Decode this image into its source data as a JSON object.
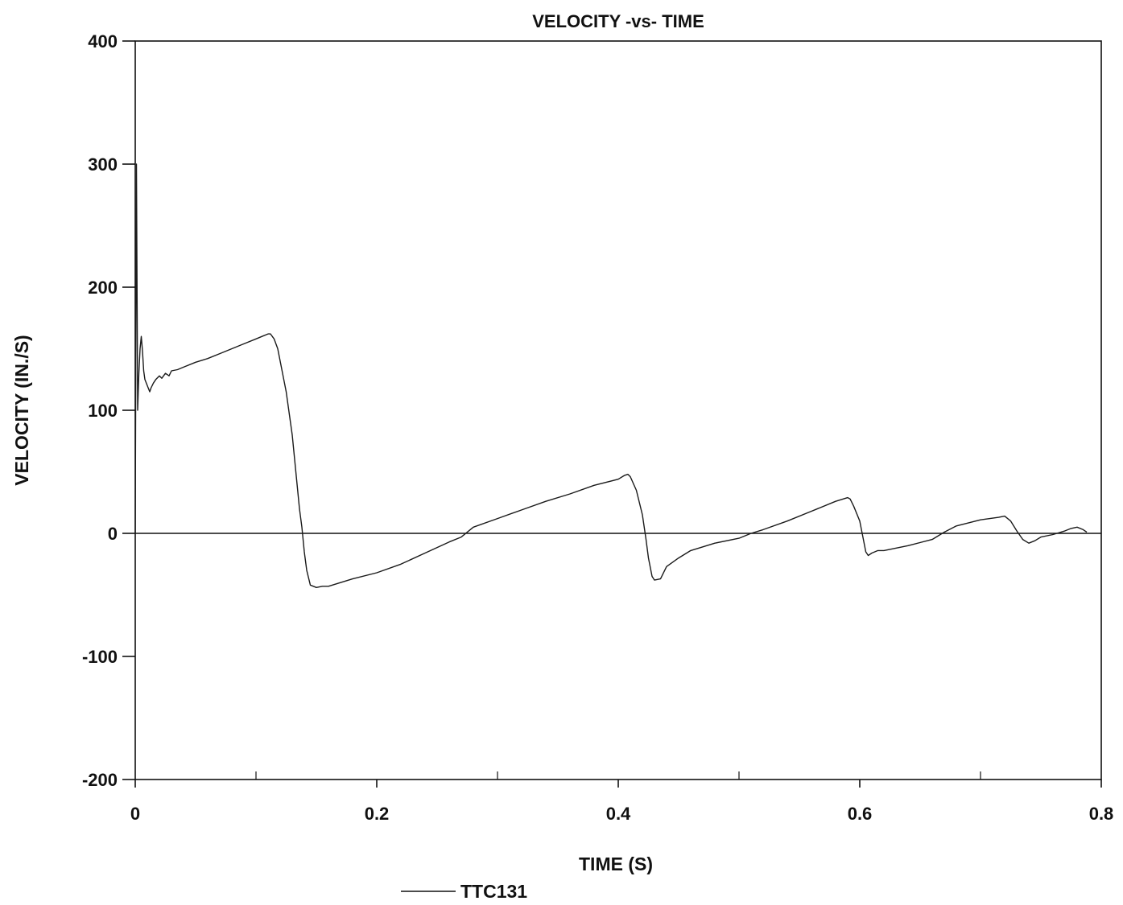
{
  "chart_data": {
    "type": "line",
    "title": "VELOCITY -vs- TIME",
    "xlabel": "TIME (S)",
    "ylabel": "VELOCITY (IN./S)",
    "xlim": [
      0,
      0.8
    ],
    "ylim": [
      -200,
      400
    ],
    "x_ticks": [
      0,
      0.2,
      0.4,
      0.6,
      0.8
    ],
    "x_tick_labels": [
      "0",
      "0.2",
      "0.4",
      "0.6",
      "0.8"
    ],
    "x_minor_ticks": [
      0.1,
      0.3,
      0.5,
      0.7
    ],
    "y_ticks": [
      -200,
      -100,
      0,
      100,
      200,
      300,
      400
    ],
    "y_tick_labels": [
      "-200",
      "-100",
      "0",
      "100",
      "200",
      "300",
      "400"
    ],
    "zero_line": true,
    "grid": false,
    "legend_position": "bottom-center",
    "colors": {
      "series": "#1a1a1a",
      "axes": "#111111"
    },
    "series": [
      {
        "name": "TTC131",
        "x": [
          0,
          0.001,
          0.002,
          0.003,
          0.004,
          0.005,
          0.006,
          0.007,
          0.008,
          0.01,
          0.012,
          0.013,
          0.015,
          0.017,
          0.02,
          0.022,
          0.025,
          0.028,
          0.03,
          0.035,
          0.04,
          0.05,
          0.06,
          0.07,
          0.08,
          0.09,
          0.1,
          0.105,
          0.11,
          0.112,
          0.115,
          0.118,
          0.12,
          0.125,
          0.13,
          0.133,
          0.136,
          0.138,
          0.14,
          0.142,
          0.145,
          0.15,
          0.155,
          0.16,
          0.17,
          0.18,
          0.2,
          0.22,
          0.24,
          0.26,
          0.27,
          0.28,
          0.3,
          0.32,
          0.34,
          0.36,
          0.38,
          0.4,
          0.405,
          0.408,
          0.41,
          0.415,
          0.42,
          0.423,
          0.425,
          0.428,
          0.43,
          0.435,
          0.44,
          0.45,
          0.46,
          0.48,
          0.5,
          0.51,
          0.52,
          0.54,
          0.56,
          0.58,
          0.59,
          0.592,
          0.595,
          0.6,
          0.603,
          0.605,
          0.607,
          0.61,
          0.615,
          0.62,
          0.64,
          0.66,
          0.67,
          0.68,
          0.7,
          0.715,
          0.72,
          0.725,
          0.73,
          0.735,
          0.74,
          0.745,
          0.75,
          0.76,
          0.77,
          0.775,
          0.78,
          0.785,
          0.788
        ],
        "values": [
          0,
          300,
          100,
          130,
          150,
          160,
          148,
          132,
          125,
          120,
          115,
          118,
          122,
          125,
          128,
          126,
          130,
          128,
          132,
          133,
          135,
          139,
          142,
          146,
          150,
          154,
          158,
          160,
          162,
          162,
          158,
          150,
          140,
          115,
          80,
          50,
          20,
          5,
          -15,
          -30,
          -42,
          -44,
          -43,
          -43,
          -40,
          -37,
          -32,
          -25,
          -16,
          -7,
          -3,
          5,
          12,
          19,
          26,
          32,
          39,
          44,
          47,
          48,
          46,
          35,
          15,
          -5,
          -20,
          -35,
          -38,
          -37,
          -27,
          -20,
          -14,
          -8,
          -4,
          0,
          3,
          10,
          18,
          26,
          29,
          28,
          22,
          10,
          -5,
          -15,
          -18,
          -16,
          -14,
          -14,
          -10,
          -5,
          1,
          6,
          11,
          13,
          14,
          10,
          2,
          -5,
          -8,
          -6,
          -3,
          -1,
          2,
          4,
          5,
          3,
          1
        ]
      }
    ]
  }
}
